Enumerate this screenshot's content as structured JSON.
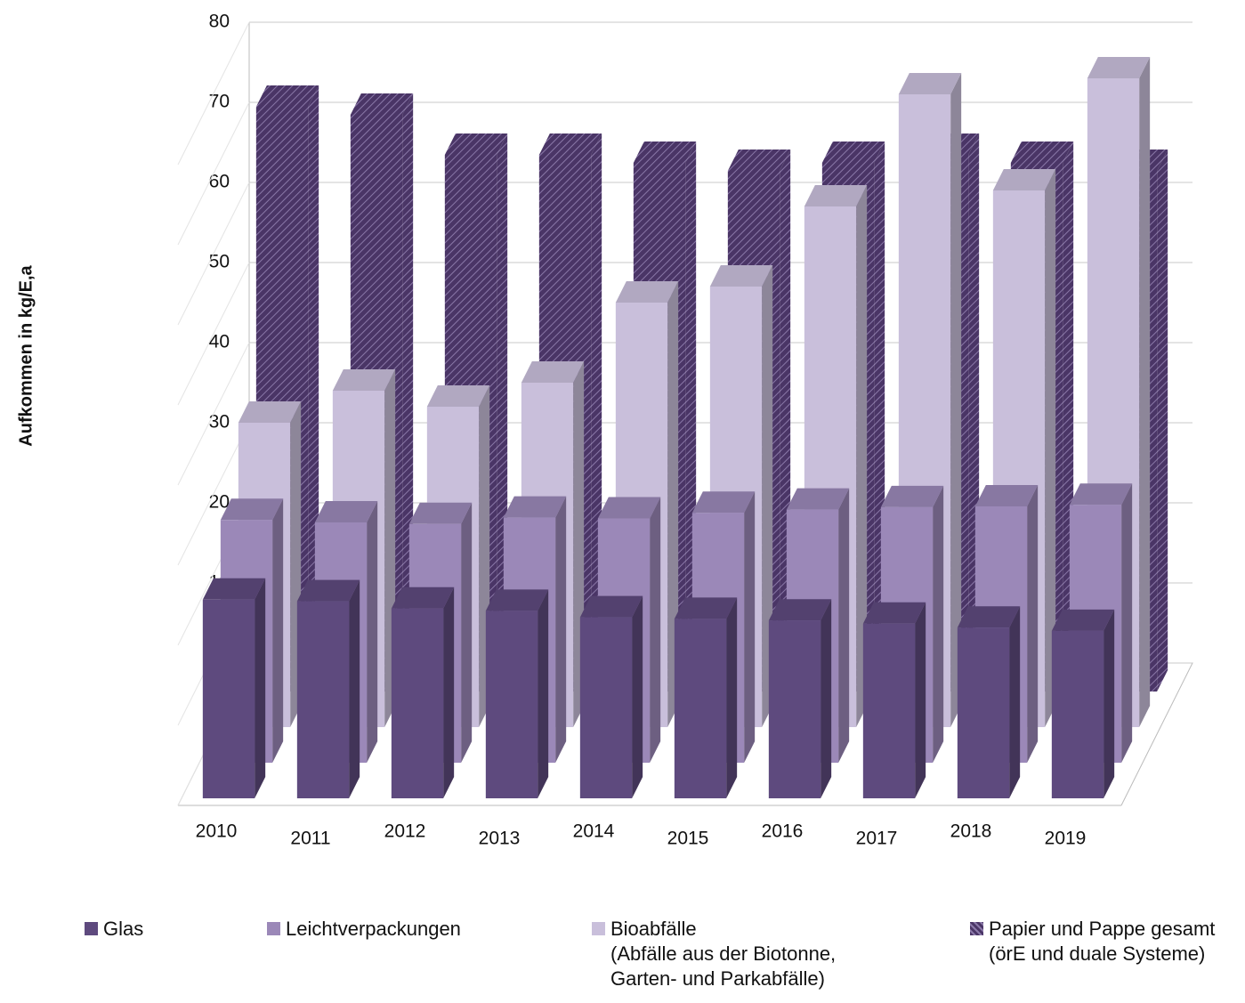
{
  "chart_data": {
    "type": "bar3d",
    "y_axis_label": "Aufkommen in kg/E,a",
    "categories": [
      "2010",
      "2011",
      "2012",
      "2013",
      "2014",
      "2015",
      "2016",
      "2017",
      "2018",
      "2019"
    ],
    "series": [
      {
        "name": "Glas",
        "color": "#5e4a7e",
        "values": [
          24.8,
          24.6,
          23.7,
          23.4,
          22.6,
          22.4,
          22.2,
          21.8,
          21.3,
          20.9
        ]
      },
      {
        "name": "Leichtverpackungen",
        "color": "#9b88b8",
        "values": [
          30.3,
          30.0,
          29.8,
          30.6,
          30.5,
          31.2,
          31.6,
          31.9,
          32.0,
          32.2
        ]
      },
      {
        "name": "Bioabfälle\n(Abfälle aus der Biotonne,\nGarten- und Parkabfälle)",
        "color": "#c9bfdb",
        "values": [
          38,
          42,
          40,
          43,
          53,
          55,
          65,
          79,
          67,
          81
        ]
      },
      {
        "name": "Papier und Pappe gesamt\n(örE und duale Systeme)",
        "color": "#4a3566",
        "pattern": "hatch",
        "values": [
          73,
          72,
          67,
          67,
          66,
          65,
          66,
          67,
          66,
          65
        ]
      }
    ],
    "ylim": [
      0,
      80
    ],
    "yticks": [
      0,
      10,
      20,
      30,
      40,
      50,
      60,
      70,
      80
    ],
    "grid": true
  }
}
